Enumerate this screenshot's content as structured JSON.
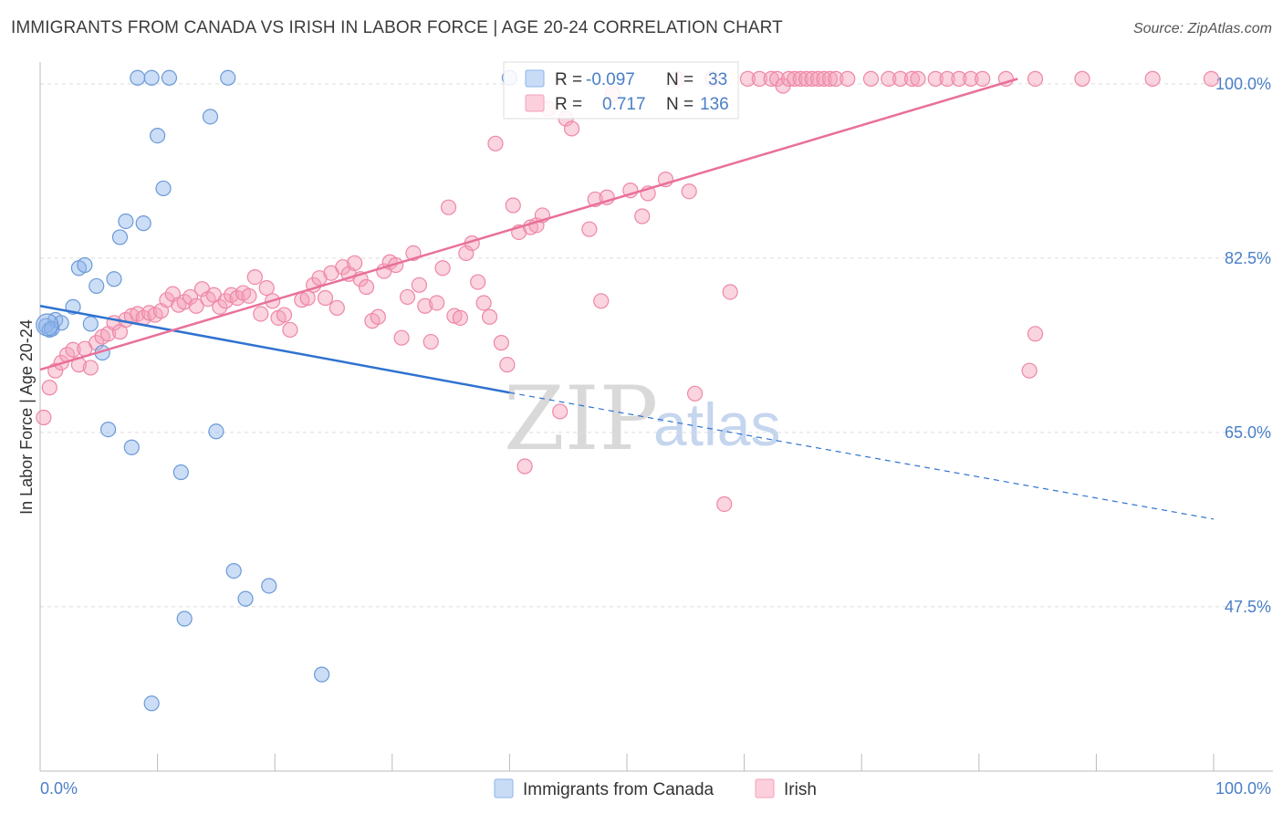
{
  "header": {
    "title": "IMMIGRANTS FROM CANADA VS IRISH IN LABOR FORCE | AGE 20-24 CORRELATION CHART",
    "source": "Source: ZipAtlas.com"
  },
  "stats_legend": {
    "r_label": "R =",
    "n_label": "N =",
    "rows": [
      {
        "r": "-0.097",
        "n": "33",
        "color": "#8db4ea"
      },
      {
        "r": "0.717",
        "n": "136",
        "color": "#f4a0b8"
      }
    ]
  },
  "watermark": {
    "zip": "ZIP",
    "atlas": "atlas"
  },
  "chart_data": {
    "type": "scatter",
    "ylabel": "In Labor Force | Age 20-24",
    "x_tick_labels": [
      "0.0%",
      "100.0%"
    ],
    "y_tick_labels": [
      "100.0%",
      "82.5%",
      "65.0%",
      "47.5%"
    ],
    "y_ticks": [
      100.0,
      82.5,
      65.0,
      47.5
    ],
    "xlim": [
      0,
      100
    ],
    "ylim": [
      31,
      102
    ],
    "grid": true,
    "legend_position": "bottom",
    "series": [
      {
        "name": "Immigrants from Canada",
        "color": "#8db4ea",
        "stroke": "#6a9ad8",
        "trend": {
          "x0": 0,
          "y0": 77.7,
          "x1": 40,
          "y1": 69.0,
          "dashed_to_x": 100,
          "dashed_to_y": 56.3,
          "color": "#2f72d0"
        },
        "points": [
          [
            0.5,
            75.7
          ],
          [
            0.8,
            75.3
          ],
          [
            1.3,
            76.3
          ],
          [
            1.8,
            76.0
          ],
          [
            2.8,
            77.6
          ],
          [
            3.3,
            81.5
          ],
          [
            3.8,
            81.8
          ],
          [
            4.3,
            75.9
          ],
          [
            4.8,
            79.7
          ],
          [
            5.3,
            73.0
          ],
          [
            5.8,
            65.3
          ],
          [
            6.3,
            80.4
          ],
          [
            6.8,
            84.6
          ],
          [
            7.3,
            86.2
          ],
          [
            7.8,
            63.5
          ],
          [
            8.3,
            100.6
          ],
          [
            8.8,
            86.0
          ],
          [
            9.5,
            100.6
          ],
          [
            10.0,
            94.8
          ],
          [
            10.5,
            89.5
          ],
          [
            11.0,
            100.6
          ],
          [
            12.0,
            61.0
          ],
          [
            12.3,
            46.3
          ],
          [
            14.5,
            96.7
          ],
          [
            15.0,
            65.1
          ],
          [
            16.0,
            100.6
          ],
          [
            16.5,
            51.1
          ],
          [
            17.5,
            48.3
          ],
          [
            19.5,
            49.6
          ],
          [
            24.0,
            40.7
          ],
          [
            9.5,
            37.8
          ],
          [
            40.0,
            100.6
          ],
          [
            1.0,
            75.4
          ]
        ]
      },
      {
        "name": "Irish",
        "color": "#f4a0b8",
        "stroke": "#ee87a6",
        "trend": {
          "x0": 0,
          "y0": 71.3,
          "x1": 83.3,
          "y1": 100.5,
          "color": "#e9709a"
        },
        "points": [
          [
            0.3,
            66.5
          ],
          [
            0.8,
            69.5
          ],
          [
            1.3,
            71.2
          ],
          [
            1.8,
            72.0
          ],
          [
            2.3,
            72.8
          ],
          [
            2.8,
            73.3
          ],
          [
            3.3,
            71.8
          ],
          [
            3.8,
            73.4
          ],
          [
            4.3,
            71.5
          ],
          [
            4.8,
            74.0
          ],
          [
            5.3,
            74.6
          ],
          [
            5.8,
            74.9
          ],
          [
            6.3,
            76.0
          ],
          [
            6.8,
            75.1
          ],
          [
            7.3,
            76.3
          ],
          [
            7.8,
            76.7
          ],
          [
            8.3,
            76.9
          ],
          [
            8.8,
            76.5
          ],
          [
            9.3,
            77.0
          ],
          [
            9.8,
            76.8
          ],
          [
            10.3,
            77.2
          ],
          [
            10.8,
            78.3
          ],
          [
            11.3,
            78.9
          ],
          [
            11.8,
            77.8
          ],
          [
            12.3,
            78.1
          ],
          [
            12.8,
            78.6
          ],
          [
            13.3,
            77.7
          ],
          [
            13.8,
            79.4
          ],
          [
            14.3,
            78.4
          ],
          [
            14.8,
            78.8
          ],
          [
            15.3,
            77.6
          ],
          [
            15.8,
            78.2
          ],
          [
            16.3,
            78.8
          ],
          [
            16.8,
            78.5
          ],
          [
            17.3,
            79.0
          ],
          [
            17.8,
            78.7
          ],
          [
            18.3,
            80.6
          ],
          [
            18.8,
            76.9
          ],
          [
            19.3,
            79.5
          ],
          [
            19.8,
            78.2
          ],
          [
            20.3,
            76.5
          ],
          [
            20.8,
            76.8
          ],
          [
            21.3,
            75.3
          ],
          [
            22.3,
            78.3
          ],
          [
            22.8,
            78.5
          ],
          [
            23.3,
            79.8
          ],
          [
            23.8,
            80.5
          ],
          [
            24.3,
            78.5
          ],
          [
            24.8,
            81.0
          ],
          [
            25.3,
            77.5
          ],
          [
            25.8,
            81.6
          ],
          [
            26.3,
            80.9
          ],
          [
            26.8,
            82.0
          ],
          [
            27.3,
            80.4
          ],
          [
            27.8,
            79.6
          ],
          [
            28.3,
            76.2
          ],
          [
            28.8,
            76.6
          ],
          [
            29.3,
            81.2
          ],
          [
            29.8,
            82.1
          ],
          [
            30.3,
            81.8
          ],
          [
            30.8,
            74.5
          ],
          [
            31.3,
            78.6
          ],
          [
            31.8,
            83.0
          ],
          [
            32.3,
            79.8
          ],
          [
            32.8,
            77.7
          ],
          [
            33.3,
            74.1
          ],
          [
            33.8,
            78.0
          ],
          [
            34.3,
            81.5
          ],
          [
            34.8,
            87.6
          ],
          [
            35.3,
            76.7
          ],
          [
            35.8,
            76.5
          ],
          [
            36.3,
            83.0
          ],
          [
            36.8,
            84.0
          ],
          [
            37.3,
            80.1
          ],
          [
            37.8,
            78.0
          ],
          [
            38.3,
            76.6
          ],
          [
            38.8,
            94.0
          ],
          [
            39.3,
            74.0
          ],
          [
            39.8,
            71.8
          ],
          [
            40.3,
            87.8
          ],
          [
            40.8,
            85.1
          ],
          [
            41.3,
            61.6
          ],
          [
            41.8,
            85.6
          ],
          [
            42.3,
            85.8
          ],
          [
            42.8,
            86.8
          ],
          [
            43.3,
            97.5
          ],
          [
            44.3,
            67.1
          ],
          [
            44.8,
            96.5
          ],
          [
            45.3,
            95.5
          ],
          [
            46.8,
            85.4
          ],
          [
            47.3,
            88.4
          ],
          [
            47.8,
            78.2
          ],
          [
            48.3,
            88.6
          ],
          [
            48.8,
            99.0
          ],
          [
            50.3,
            89.3
          ],
          [
            51.3,
            86.7
          ],
          [
            51.8,
            89.0
          ],
          [
            53.3,
            90.4
          ],
          [
            54.3,
            100.5
          ],
          [
            55.3,
            89.2
          ],
          [
            55.8,
            68.9
          ],
          [
            57.3,
            100.5
          ],
          [
            58.3,
            57.8
          ],
          [
            58.8,
            79.1
          ],
          [
            60.3,
            100.5
          ],
          [
            61.3,
            100.5
          ],
          [
            62.3,
            100.5
          ],
          [
            62.8,
            100.5
          ],
          [
            63.3,
            99.8
          ],
          [
            63.8,
            100.5
          ],
          [
            64.3,
            100.5
          ],
          [
            64.8,
            100.5
          ],
          [
            65.3,
            100.5
          ],
          [
            65.8,
            100.5
          ],
          [
            66.3,
            100.5
          ],
          [
            66.8,
            100.5
          ],
          [
            67.3,
            100.5
          ],
          [
            67.8,
            100.5
          ],
          [
            68.8,
            100.5
          ],
          [
            70.8,
            100.5
          ],
          [
            72.3,
            100.5
          ],
          [
            73.3,
            100.5
          ],
          [
            74.3,
            100.5
          ],
          [
            74.8,
            100.5
          ],
          [
            76.3,
            100.5
          ],
          [
            77.3,
            100.5
          ],
          [
            78.3,
            100.5
          ],
          [
            79.3,
            100.5
          ],
          [
            80.3,
            100.5
          ],
          [
            82.3,
            100.5
          ],
          [
            84.8,
            100.5
          ],
          [
            88.8,
            100.5
          ],
          [
            94.8,
            100.5
          ],
          [
            84.3,
            71.2
          ],
          [
            84.8,
            74.9
          ],
          [
            99.8,
            100.5
          ]
        ]
      }
    ]
  }
}
